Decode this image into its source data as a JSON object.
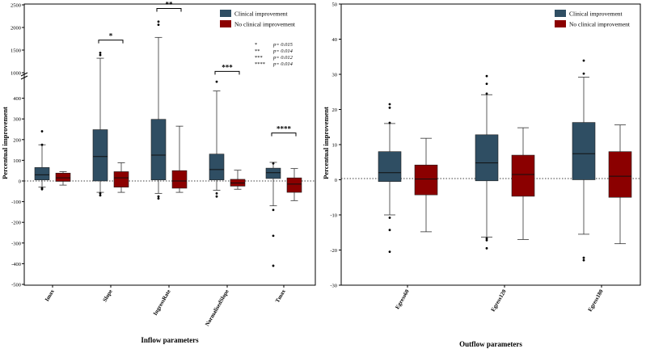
{
  "colors": {
    "clinical": "#2F4E63",
    "no_clinical": "#8B0000"
  },
  "chart_data": [
    {
      "type": "box",
      "xlabel": "Inflow parameters",
      "ylabel": "Percentual improvement",
      "categories": [
        "Imax",
        "Slope",
        "IngressRate",
        "NormalisedSlope",
        "Tmax"
      ],
      "legend": {
        "position": "top-right",
        "entries": [
          "Clinical improvement",
          "No clinical improvement"
        ]
      },
      "y_axis_broken": true,
      "yticks_lower": [
        -500,
        -400,
        -300,
        -200,
        -100,
        0,
        100,
        200,
        300,
        400
      ],
      "yticks_upper": [
        1000,
        1500,
        2000,
        2500
      ],
      "ylim_lower": [
        -500,
        420
      ],
      "ylim_upper": [
        1000,
        2500
      ],
      "reference_line_y": 0,
      "series": [
        {
          "name": "Clinical improvement",
          "color_key": "clinical",
          "boxes": [
            {
              "min": -30,
              "q1": 5,
              "median": 30,
              "q3": 65,
              "max": 175,
              "outliers": [
                240,
                175,
                -35,
                -40
              ]
            },
            {
              "min": -55,
              "q1": 0,
              "median": 118,
              "q3": 248,
              "max": 1320,
              "outliers": [
                1440,
                1390,
                -60,
                -70
              ]
            },
            {
              "min": -60,
              "q1": 5,
              "median": 125,
              "q3": 298,
              "max": 1780,
              "outliers": [
                2130,
                2060,
                -75,
                -85
              ]
            },
            {
              "min": -45,
              "q1": 5,
              "median": 55,
              "q3": 130,
              "max": 435,
              "outliers": [
                480,
                -60,
                -75
              ]
            },
            {
              "min": -120,
              "q1": 12,
              "median": 40,
              "q3": 62,
              "max": 90,
              "outliers": [
                85,
                -140,
                -265,
                -410
              ]
            }
          ]
        },
        {
          "name": "No clinical improvement",
          "color_key": "no_clinical",
          "boxes": [
            {
              "min": -20,
              "q1": -2,
              "median": 15,
              "q3": 38,
              "max": 45,
              "outliers": []
            },
            {
              "min": -55,
              "q1": -30,
              "median": 15,
              "q3": 45,
              "max": 88,
              "outliers": []
            },
            {
              "min": -55,
              "q1": -35,
              "median": 0,
              "q3": 50,
              "max": 265,
              "outliers": []
            },
            {
              "min": -40,
              "q1": -25,
              "median": -10,
              "q3": 8,
              "max": 52,
              "outliers": []
            },
            {
              "min": -95,
              "q1": -55,
              "median": -15,
              "q3": 15,
              "max": 60,
              "outliers": []
            }
          ]
        }
      ],
      "significance": [
        {
          "category_index": 1,
          "stars": "*",
          "y": 1720
        },
        {
          "category_index": 2,
          "stars": "**",
          "y": 2420
        },
        {
          "category_index": 3,
          "stars": "***",
          "y": 1030
        },
        {
          "category_index": 4,
          "stars": "****",
          "y": 232
        }
      ],
      "pvalue_legend": [
        {
          "stars": "*",
          "p": "p= 0.015"
        },
        {
          "stars": "**",
          "p": "p= 0.014"
        },
        {
          "stars": "***",
          "p": "p= 0.012"
        },
        {
          "stars": "****",
          "p": "p= 0.014"
        }
      ]
    },
    {
      "type": "box",
      "xlabel": "Outflow parameters",
      "ylabel": "Percentual improvement",
      "categories": [
        "Egress60",
        "Egress120",
        "Egress180"
      ],
      "legend": {
        "position": "top-right",
        "entries": [
          "Clinical improvement",
          "No clinical improvement"
        ]
      },
      "yticks": [
        -30,
        -20,
        -10,
        0,
        10,
        20,
        30,
        40,
        50
      ],
      "ylim": [
        -30,
        50
      ],
      "reference_line_y": 0,
      "series": [
        {
          "name": "Clinical improvement",
          "color_key": "clinical",
          "boxes": [
            {
              "min": -10,
              "q1": -0.5,
              "median": 2,
              "q3": 8,
              "max": 16,
              "outliers": [
                21.5,
                20.5,
                16.2,
                -10.8,
                -14.3,
                -20.5
              ]
            },
            {
              "min": -16.3,
              "q1": -0.3,
              "median": 4.8,
              "q3": 12.8,
              "max": 24.2,
              "outliers": [
                29.5,
                27.3,
                24.5,
                -16.7,
                -17.2,
                -19.5
              ]
            },
            {
              "min": -15.5,
              "q1": 0,
              "median": 7.4,
              "q3": 16.3,
              "max": 29.2,
              "outliers": [
                33.9,
                30.2,
                -22.2,
                -22.9
              ]
            }
          ]
        },
        {
          "name": "No clinical improvement",
          "color_key": "no_clinical",
          "boxes": [
            {
              "min": -14.8,
              "q1": -4.3,
              "median": 0.2,
              "q3": 4.2,
              "max": 11.8,
              "outliers": []
            },
            {
              "min": -17,
              "q1": -4.7,
              "median": 1.5,
              "q3": 7,
              "max": 14.8,
              "outliers": []
            },
            {
              "min": -18.2,
              "q1": -5,
              "median": 1,
              "q3": 8,
              "max": 15.6,
              "outliers": []
            }
          ]
        }
      ]
    }
  ]
}
